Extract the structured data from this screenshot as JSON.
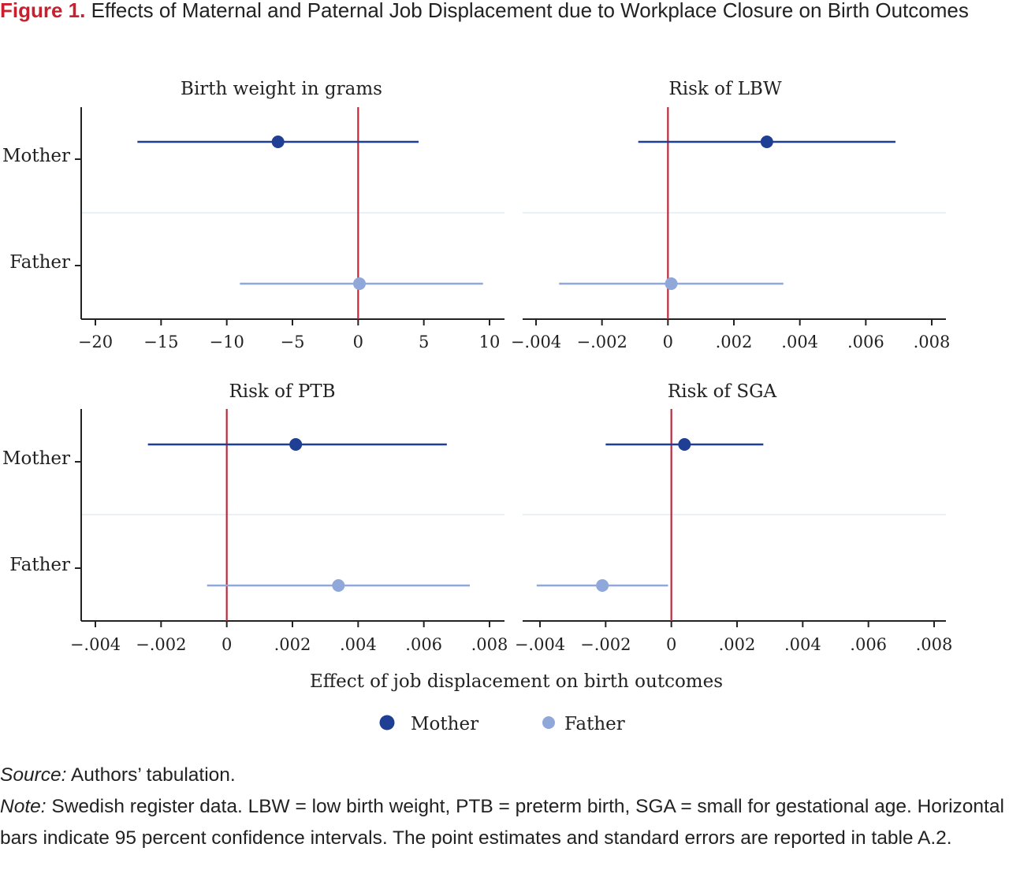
{
  "caption": {
    "label": "Figure 1.",
    "text": "Effects of Maternal and Paternal Job Displacement due to Workplace Closure on Birth Outcomes"
  },
  "colors": {
    "mother": "#1f3f95",
    "father": "#8fa8d9",
    "zero_line": "#c0283a",
    "separator": "#e8f1f6",
    "axis": "#222222"
  },
  "chart_data": [
    {
      "type": "coefficient-plot",
      "title": "Birth weight in grams",
      "categories": [
        "Mother",
        "Father"
      ],
      "xlim": [
        -21,
        11
      ],
      "xticks": [
        -20,
        -15,
        -10,
        -5,
        0,
        5,
        10
      ],
      "xtick_labels": [
        "−20",
        "−15",
        "−10",
        "−5",
        "0",
        "5",
        "10"
      ],
      "series": [
        {
          "name": "Mother",
          "estimate": -6.1,
          "ci": [
            -16.8,
            4.6
          ]
        },
        {
          "name": "Father",
          "estimate": 0.1,
          "ci": [
            -9.0,
            9.5
          ]
        }
      ]
    },
    {
      "type": "coefficient-plot",
      "title": "Risk of LBW",
      "categories": [
        "Mother",
        "Father"
      ],
      "xlim": [
        -0.0044,
        0.0085
      ],
      "xticks": [
        -0.004,
        -0.002,
        0,
        0.002,
        0.004,
        0.006,
        0.008
      ],
      "xtick_labels": [
        "−.004",
        "−.002",
        "0",
        ".002",
        ".004",
        ".006",
        ".008"
      ],
      "series": [
        {
          "name": "Mother",
          "estimate": 0.003,
          "ci": [
            -0.0009,
            0.0069
          ]
        },
        {
          "name": "Father",
          "estimate": 0.0001,
          "ci": [
            -0.0033,
            0.0035
          ]
        }
      ]
    },
    {
      "type": "coefficient-plot",
      "title": "Risk of PTB",
      "categories": [
        "Mother",
        "Father"
      ],
      "xlim": [
        -0.0044,
        0.0085
      ],
      "xticks": [
        -0.004,
        -0.002,
        0,
        0.002,
        0.004,
        0.006,
        0.008
      ],
      "xtick_labels": [
        "−.004",
        "−.002",
        "0",
        ".002",
        ".004",
        ".006",
        ".008"
      ],
      "series": [
        {
          "name": "Mother",
          "estimate": 0.0021,
          "ci": [
            -0.0024,
            0.0067
          ]
        },
        {
          "name": "Father",
          "estimate": 0.0034,
          "ci": [
            -0.0006,
            0.0074
          ]
        }
      ]
    },
    {
      "type": "coefficient-plot",
      "title": "Risk of SGA",
      "categories": [
        "Mother",
        "Father"
      ],
      "xlim": [
        -0.0044,
        0.0085
      ],
      "xticks": [
        -0.004,
        -0.002,
        0,
        0.002,
        0.004,
        0.006,
        0.008
      ],
      "xtick_labels": [
        "−.004",
        "−.002",
        "0",
        ".002",
        ".004",
        ".006",
        ".008"
      ],
      "series": [
        {
          "name": "Mother",
          "estimate": 0.0004,
          "ci": [
            -0.002,
            0.0028
          ]
        },
        {
          "name": "Father",
          "estimate": -0.0021,
          "ci": [
            -0.0041,
            -0.0001
          ]
        }
      ]
    }
  ],
  "xlabel": "Effect of job displacement on birth outcomes",
  "legend": [
    {
      "name": "Mother",
      "color": "#1f3f95"
    },
    {
      "name": "Father",
      "color": "#8fa8d9"
    }
  ],
  "notes": {
    "source_label": "Source:",
    "source_text": " Authors’ tabulation.",
    "note_label": "Note:",
    "note_text": " Swedish register data. LBW = low birth weight, PTB = preterm birth, SGA = small for gestational age. Horizontal bars indicate 95 percent confidence intervals. The point estimates and standard errors are reported in table A.2."
  }
}
